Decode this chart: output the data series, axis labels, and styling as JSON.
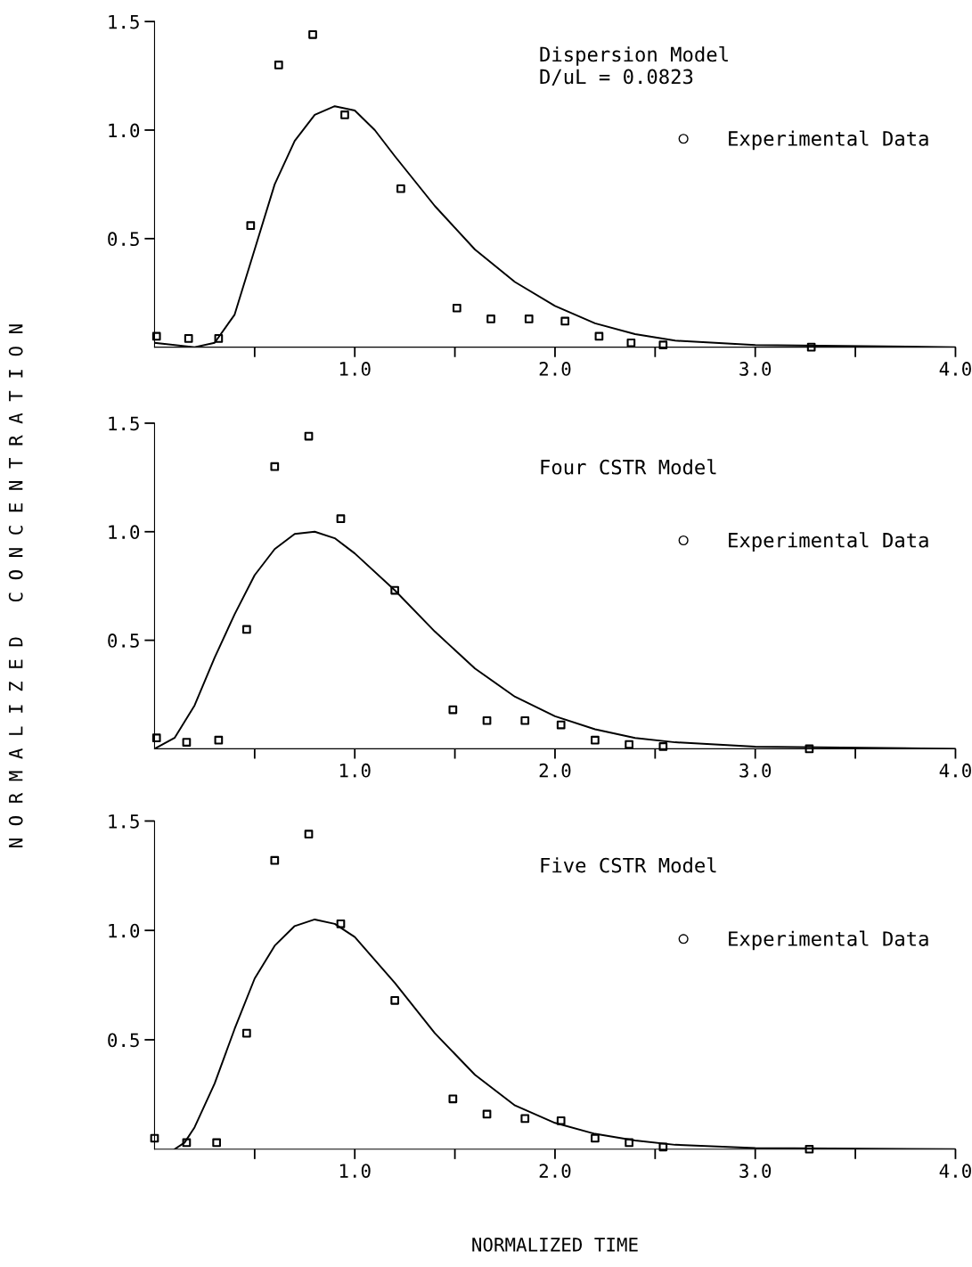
{
  "chart_data": [
    {
      "type": "scatter",
      "annotations": [
        "Dispersion Model\nD/uL = 0.0823"
      ],
      "xlim": [
        0,
        4
      ],
      "ylim": [
        0,
        1.5
      ],
      "xticks": [
        {
          "value": 0.5,
          "label": null
        },
        {
          "value": 1.0,
          "label": "1.0"
        },
        {
          "value": 1.5,
          "label": null
        },
        {
          "value": 2.0,
          "label": "2.0"
        },
        {
          "value": 2.5,
          "label": null
        },
        {
          "value": 3.0,
          "label": "3.0"
        },
        {
          "value": 3.5,
          "label": null
        },
        {
          "value": 4.0,
          "label": "4.0"
        }
      ],
      "yticks": [
        {
          "value": 0.5,
          "label": "0.5"
        },
        {
          "value": 1.0,
          "label": "1.0"
        },
        {
          "value": 1.5,
          "label": "1.5"
        }
      ],
      "grid": false,
      "legend": "top right",
      "marker": "square",
      "series": [
        {
          "name": "Experimental Data",
          "color": "#000000",
          "x": [
            0.01,
            0.17,
            0.32,
            0.48,
            0.62,
            0.79,
            0.95,
            1.23,
            1.51,
            1.68,
            1.87,
            2.05,
            2.22,
            2.38,
            2.54,
            3.28
          ],
          "values": [
            0.05,
            0.04,
            0.04,
            0.56,
            1.3,
            1.44,
            1.07,
            0.73,
            0.18,
            0.13,
            0.13,
            0.12,
            0.05,
            0.02,
            0.01,
            0.0
          ]
        },
        {
          "type": "line",
          "color": "#000000",
          "line_style": "solid",
          "marker": "none",
          "x": [
            0,
            0.2,
            0.3,
            0.4,
            0.5,
            0.6,
            0.7,
            0.8,
            0.9,
            1.0,
            1.1,
            1.2,
            1.4,
            1.6,
            1.8,
            2.0,
            2.2,
            2.4,
            2.6,
            3.0,
            4.0
          ],
          "values": [
            0.02,
            0.0,
            0.02,
            0.15,
            0.45,
            0.75,
            0.95,
            1.07,
            1.11,
            1.09,
            1.0,
            0.88,
            0.65,
            0.45,
            0.3,
            0.19,
            0.11,
            0.06,
            0.03,
            0.01,
            0.0
          ]
        }
      ]
    },
    {
      "type": "scatter",
      "ylabel": "N O R M A L I Z E D   C O N C E N T R A T I O N",
      "annotations": [
        "Four CSTR Model"
      ],
      "xlim": [
        0,
        4
      ],
      "ylim": [
        0,
        1.5
      ],
      "xticks": [
        {
          "value": 0.5,
          "label": null
        },
        {
          "value": 1.0,
          "label": "1.0"
        },
        {
          "value": 1.5,
          "label": null
        },
        {
          "value": 2.0,
          "label": "2.0"
        },
        {
          "value": 2.5,
          "label": null
        },
        {
          "value": 3.0,
          "label": "3.0"
        },
        {
          "value": 3.5,
          "label": null
        },
        {
          "value": 4.0,
          "label": "4.0"
        }
      ],
      "yticks": [
        {
          "value": 0.5,
          "label": "0.5"
        },
        {
          "value": 1.0,
          "label": "1.0"
        },
        {
          "value": 1.5,
          "label": "1.5"
        }
      ],
      "grid": false,
      "legend": "top right",
      "marker": "square",
      "series": [
        {
          "name": "Experimental Data",
          "color": "#000000",
          "x": [
            0.01,
            0.16,
            0.32,
            0.46,
            0.6,
            0.77,
            0.93,
            1.2,
            1.49,
            1.66,
            1.85,
            2.03,
            2.2,
            2.37,
            2.54,
            3.27
          ],
          "values": [
            0.05,
            0.03,
            0.04,
            0.55,
            1.3,
            1.44,
            1.06,
            0.73,
            0.18,
            0.13,
            0.13,
            0.11,
            0.04,
            0.02,
            0.01,
            0.0
          ]
        },
        {
          "type": "line",
          "color": "#000000",
          "line_style": "solid",
          "marker": "none",
          "x": [
            0,
            0.1,
            0.2,
            0.3,
            0.4,
            0.5,
            0.6,
            0.7,
            0.8,
            0.9,
            1.0,
            1.2,
            1.4,
            1.6,
            1.8,
            2.0,
            2.2,
            2.4,
            2.6,
            3.0,
            4.0
          ],
          "values": [
            0.0,
            0.05,
            0.2,
            0.42,
            0.62,
            0.8,
            0.92,
            0.99,
            1.0,
            0.97,
            0.9,
            0.73,
            0.54,
            0.37,
            0.24,
            0.15,
            0.09,
            0.05,
            0.03,
            0.01,
            0.0
          ]
        }
      ]
    },
    {
      "type": "scatter",
      "xlabel": "NORMALIZED TIME",
      "annotations": [
        "Five CSTR Model"
      ],
      "xlim": [
        0,
        4
      ],
      "ylim": [
        0,
        1.5
      ],
      "xticks": [
        {
          "value": 0.5,
          "label": null
        },
        {
          "value": 1.0,
          "label": "1.0"
        },
        {
          "value": 1.5,
          "label": null
        },
        {
          "value": 2.0,
          "label": "2.0"
        },
        {
          "value": 2.5,
          "label": null
        },
        {
          "value": 3.0,
          "label": "3.0"
        },
        {
          "value": 3.5,
          "label": null
        },
        {
          "value": 4.0,
          "label": "4.0"
        }
      ],
      "yticks": [
        {
          "value": 0.5,
          "label": "0.5"
        },
        {
          "value": 1.0,
          "label": "1.0"
        },
        {
          "value": 1.5,
          "label": "1.5"
        }
      ],
      "grid": false,
      "legend": "top right",
      "marker": "square",
      "series": [
        {
          "name": "Experimental Data",
          "color": "#000000",
          "x": [
            0.0,
            0.16,
            0.31,
            0.46,
            0.6,
            0.77,
            0.93,
            1.2,
            1.49,
            1.66,
            1.85,
            2.03,
            2.2,
            2.37,
            2.54,
            3.27
          ],
          "values": [
            0.05,
            0.03,
            0.03,
            0.53,
            1.32,
            1.44,
            1.03,
            0.68,
            0.23,
            0.16,
            0.14,
            0.13,
            0.05,
            0.03,
            0.01,
            0.0
          ]
        },
        {
          "type": "line",
          "color": "#000000",
          "line_style": "solid",
          "marker": "none",
          "x": [
            0.1,
            0.15,
            0.2,
            0.3,
            0.4,
            0.5,
            0.6,
            0.7,
            0.8,
            0.9,
            1.0,
            1.2,
            1.4,
            1.6,
            1.8,
            2.0,
            2.2,
            2.4,
            2.6,
            3.0,
            4.0
          ],
          "values": [
            0.0,
            0.03,
            0.1,
            0.3,
            0.55,
            0.78,
            0.93,
            1.02,
            1.05,
            1.03,
            0.97,
            0.76,
            0.53,
            0.34,
            0.2,
            0.12,
            0.07,
            0.04,
            0.02,
            0.005,
            0.0
          ]
        }
      ]
    }
  ]
}
